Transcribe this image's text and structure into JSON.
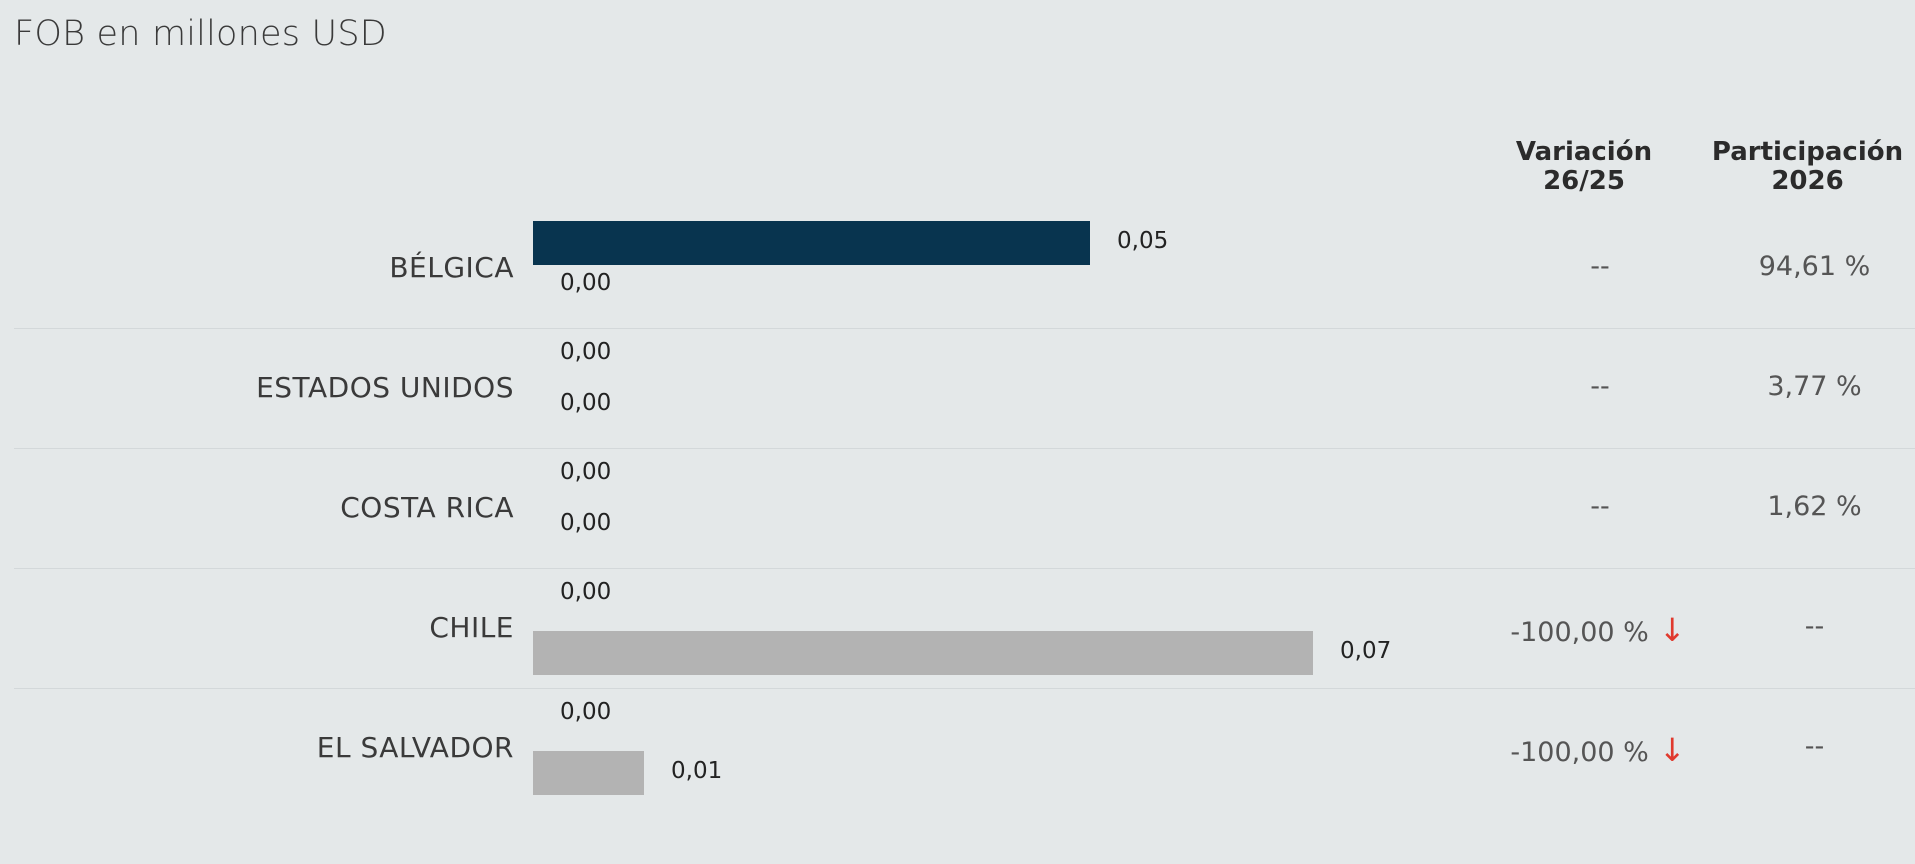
{
  "title": "FOB en millones USD",
  "headers": {
    "variation": [
      "Variación",
      "26/25"
    ],
    "participation": [
      "Participación",
      "2026"
    ]
  },
  "colors": {
    "current": "#08344f",
    "previous": "#b3b3b3",
    "down_arrow": "#e03a2e"
  },
  "chart_data": {
    "type": "bar",
    "orientation": "horizontal",
    "categories": [
      "BÉLGICA",
      "ESTADOS UNIDOS",
      "COSTA RICA",
      "CHILE",
      "EL SALVADOR"
    ],
    "series": [
      {
        "values": [
          0.05,
          0.0,
          0.0,
          0.0,
          0.0
        ],
        "labels": [
          "0,05",
          "0,00",
          "0,00",
          "0,00",
          "0,00"
        ]
      },
      {
        "values": [
          0.0,
          0.0,
          0.0,
          0.07,
          0.01
        ],
        "labels": [
          "0,00",
          "0,00",
          "0,00",
          "0,07",
          "0,01"
        ]
      }
    ],
    "xlim": [
      0,
      0.08
    ],
    "variation": [
      "--",
      "--",
      "--",
      "-100,00 %",
      "-100,00 %"
    ],
    "variation_down": [
      false,
      false,
      false,
      true,
      true
    ],
    "participation": [
      "94,61 %",
      "3,77 %",
      "1,62 %",
      "--",
      "--"
    ],
    "down_arrow_glyph": "↓"
  }
}
